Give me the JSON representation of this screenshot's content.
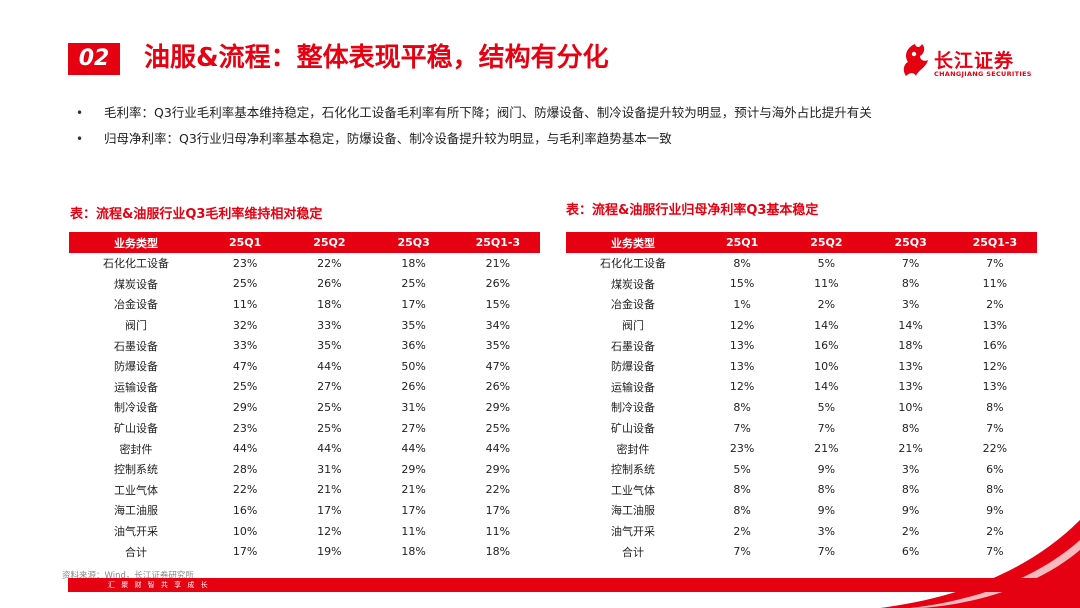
{
  "header": {
    "section_number": "02",
    "title": "油服&流程：整体表现平稳，结构有分化",
    "logo_cn": "长江证券",
    "logo_en": "CHANGJIANG SECURITIES"
  },
  "bullets": [
    "毛利率：Q3行业毛利率基本维持稳定，石化化工设备毛利率有所下降；阀门、防爆设备、制冷设备提升较为明显，预计与海外占比提升有关",
    "归母净利率：Q3行业归母净利率基本稳定，防爆设备、制冷设备提升较为明显，与毛利率趋势基本一致"
  ],
  "left_table": {
    "caption": "表：流程&油服行业Q3毛利率维持相对稳定",
    "headers": [
      "业务类型",
      "25Q1",
      "25Q2",
      "25Q3",
      "25Q1-3"
    ],
    "rows": [
      [
        "石化化工设备",
        "23%",
        "22%",
        "18%",
        "21%"
      ],
      [
        "煤炭设备",
        "25%",
        "26%",
        "25%",
        "26%"
      ],
      [
        "冶金设备",
        "11%",
        "18%",
        "17%",
        "15%"
      ],
      [
        "阀门",
        "32%",
        "33%",
        "35%",
        "34%"
      ],
      [
        "石墨设备",
        "33%",
        "35%",
        "36%",
        "35%"
      ],
      [
        "防爆设备",
        "47%",
        "44%",
        "50%",
        "47%"
      ],
      [
        "运输设备",
        "25%",
        "27%",
        "26%",
        "26%"
      ],
      [
        "制冷设备",
        "29%",
        "25%",
        "31%",
        "29%"
      ],
      [
        "矿山设备",
        "23%",
        "25%",
        "27%",
        "25%"
      ],
      [
        "密封件",
        "44%",
        "44%",
        "44%",
        "44%"
      ],
      [
        "控制系统",
        "28%",
        "31%",
        "29%",
        "29%"
      ],
      [
        "工业气体",
        "22%",
        "21%",
        "21%",
        "22%"
      ],
      [
        "海工油服",
        "16%",
        "17%",
        "17%",
        "17%"
      ],
      [
        "油气开采",
        "10%",
        "12%",
        "11%",
        "11%"
      ],
      [
        "合计",
        "17%",
        "19%",
        "18%",
        "18%"
      ]
    ]
  },
  "right_table": {
    "caption": "表：流程&油服行业归母净利率Q3基本稳定",
    "headers": [
      "业务类型",
      "25Q1",
      "25Q2",
      "25Q3",
      "25Q1-3"
    ],
    "rows": [
      [
        "石化化工设备",
        "8%",
        "5%",
        "7%",
        "7%"
      ],
      [
        "煤炭设备",
        "15%",
        "11%",
        "8%",
        "11%"
      ],
      [
        "冶金设备",
        "1%",
        "2%",
        "3%",
        "2%"
      ],
      [
        "阀门",
        "12%",
        "14%",
        "14%",
        "13%"
      ],
      [
        "石墨设备",
        "13%",
        "16%",
        "18%",
        "16%"
      ],
      [
        "防爆设备",
        "13%",
        "10%",
        "13%",
        "12%"
      ],
      [
        "运输设备",
        "12%",
        "14%",
        "13%",
        "13%"
      ],
      [
        "制冷设备",
        "8%",
        "5%",
        "10%",
        "8%"
      ],
      [
        "矿山设备",
        "7%",
        "7%",
        "8%",
        "7%"
      ],
      [
        "密封件",
        "23%",
        "21%",
        "21%",
        "22%"
      ],
      [
        "控制系统",
        "5%",
        "9%",
        "3%",
        "6%"
      ],
      [
        "工业气体",
        "8%",
        "8%",
        "8%",
        "8%"
      ],
      [
        "海工油服",
        "8%",
        "9%",
        "9%",
        "9%"
      ],
      [
        "油气开采",
        "2%",
        "3%",
        "2%",
        "2%"
      ],
      [
        "合计",
        "7%",
        "7%",
        "6%",
        "7%"
      ]
    ]
  },
  "source_note": "资料来源：Wind，长江证券研究所",
  "footer_text": "汇 聚 财 智   共 享 成 长",
  "colors": {
    "brand_red": "#e50012"
  }
}
